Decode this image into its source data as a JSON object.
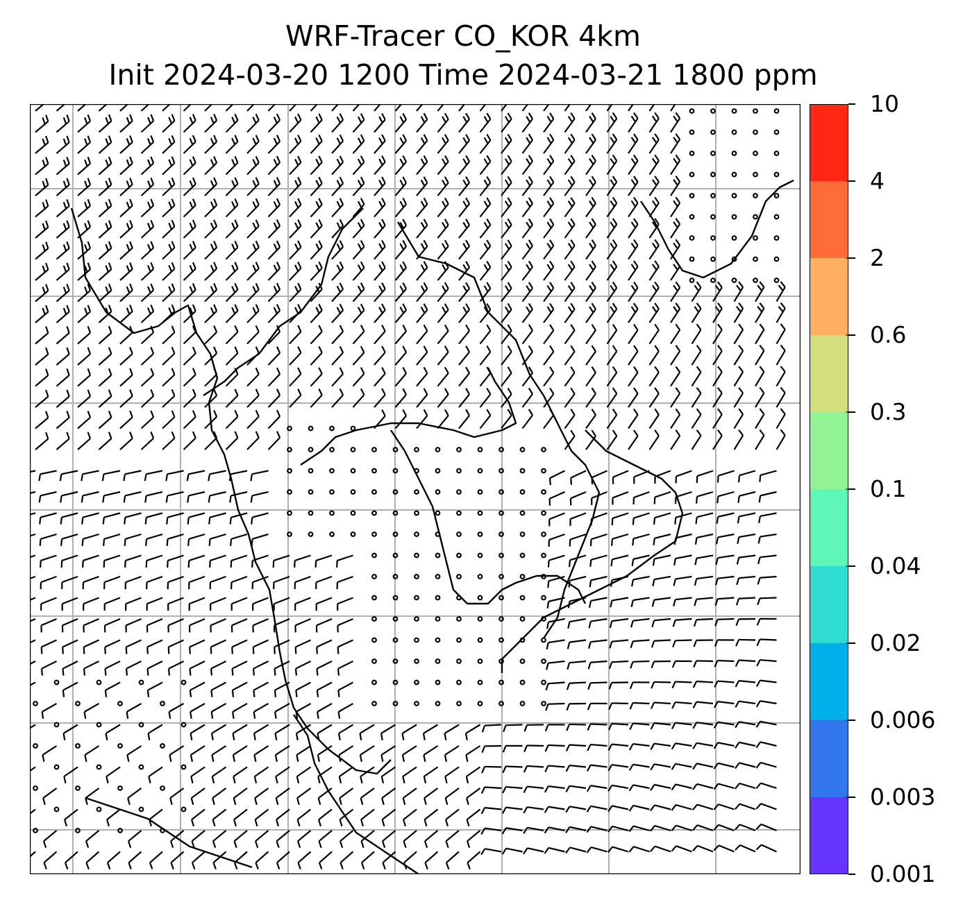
{
  "title": {
    "line1": "WRF-Tracer CO_KOR 4km",
    "line2": "Init 2024-03-20 1200 Time 2024-03-21 1800 ppm"
  },
  "map": {
    "content": "wind barbs over coastlines with lat/lon gridlines",
    "gridline_color": "#b0b0b0",
    "coastline_color": "#000000",
    "barb_color": "#000000"
  },
  "colorbar": {
    "levels": [
      "0.001",
      "0.003",
      "0.006",
      "0.02",
      "0.04",
      "0.1",
      "0.3",
      "0.6",
      "2",
      "4",
      "10"
    ],
    "colors": [
      "#6633ff",
      "#3377ee",
      "#00b0ea",
      "#2fddd3",
      "#5ef7b8",
      "#91f394",
      "#d3df7f",
      "#ffaf5f",
      "#ff6c39",
      "#ff2612"
    ]
  }
}
